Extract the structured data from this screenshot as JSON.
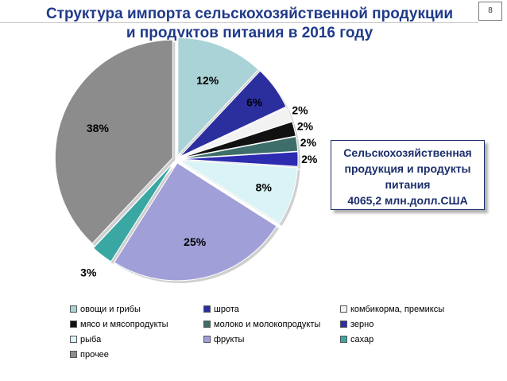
{
  "title": {
    "line1": "Структура импорта сельскохозяйственной продукции",
    "line2": "и продуктов питания в 2016 году"
  },
  "page_number": "8",
  "callout": {
    "line1": "Сельскохозяйственная",
    "line2": "продукция и продукты",
    "line3": "питания",
    "line4": "4065,2 млн.долл.США"
  },
  "chart_data": {
    "type": "pie",
    "title": "Структура импорта сельскохозяйственной продукции и продуктов питания в 2016 году",
    "categories": [
      "овощи и грибы",
      "шрота",
      "комбикорма, премиксы",
      "мясо и мясопродукты",
      "молоко и молокопродукты",
      "зерно",
      "рыба",
      "фрукты",
      "сахар",
      "прочее"
    ],
    "values": [
      12,
      6,
      2,
      2,
      2,
      2,
      8,
      25,
      3,
      38
    ],
    "labels": [
      "12%",
      "6%",
      "2%",
      "2%",
      "2%",
      "2%",
      "8%",
      "25%",
      "3%",
      "38%"
    ],
    "colors": [
      "#a9d3d6",
      "#2b2f9e",
      "#f2f2f2",
      "#111111",
      "#3e6e6a",
      "#2d2bb0",
      "#d9f3f6",
      "#a09fd8",
      "#3aa7a3",
      "#8c8c8c"
    ],
    "exploded": true,
    "legend_position": "bottom",
    "legend_columns": 3
  }
}
